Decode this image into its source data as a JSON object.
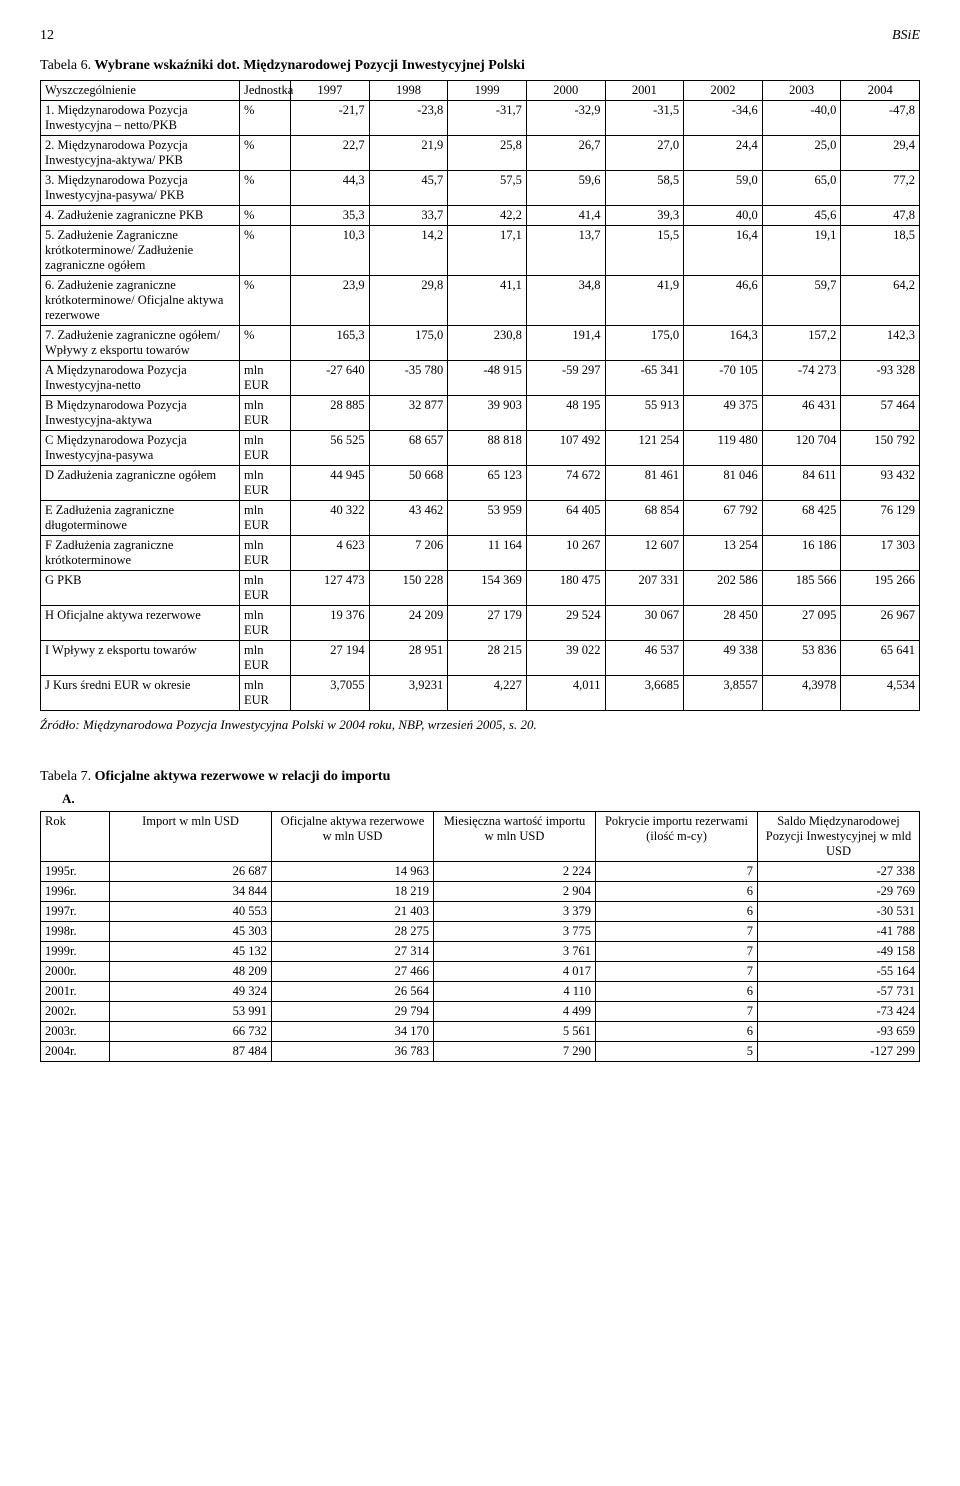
{
  "page": {
    "num": "12",
    "abbr": "BSiE"
  },
  "t6": {
    "caption_prefix": "Tabela 6.",
    "caption_bold": " Wybrane wskaźniki dot. Międzynarodowej Pozycji Inwestycyjnej Polski",
    "col_label": "Wyszczególnienie",
    "col_unit": "Jednostka",
    "years": [
      "1997",
      "1998",
      "1999",
      "2000",
      "2001",
      "2002",
      "2003",
      "2004"
    ],
    "rows": [
      {
        "label": "1. Międzynarodowa Pozycja Inwestycyjna – netto/PKB",
        "unit": "%",
        "v": [
          "-21,7",
          "-23,8",
          "-31,7",
          "-32,9",
          "-31,5",
          "-34,6",
          "-40,0",
          "-47,8"
        ]
      },
      {
        "label": "2. Międzynarodowa Pozycja Inwestycyjna-aktywa/ PKB",
        "unit": "%",
        "v": [
          "22,7",
          "21,9",
          "25,8",
          "26,7",
          "27,0",
          "24,4",
          "25,0",
          "29,4"
        ]
      },
      {
        "label": "3. Międzynarodowa Pozycja Inwestycyjna-pasywa/ PKB",
        "unit": "%",
        "v": [
          "44,3",
          "45,7",
          "57,5",
          "59,6",
          "58,5",
          "59,0",
          "65,0",
          "77,2"
        ]
      },
      {
        "label": "4. Zadłużenie zagraniczne PKB",
        "unit": "%",
        "v": [
          "35,3",
          "33,7",
          "42,2",
          "41,4",
          "39,3",
          "40,0",
          "45,6",
          "47,8"
        ]
      },
      {
        "label": "5. Zadłużenie Zagraniczne krótkoterminowe/ Zadłużenie zagraniczne ogółem",
        "unit": "%",
        "v": [
          "10,3",
          "14,2",
          "17,1",
          "13,7",
          "15,5",
          "16,4",
          "19,1",
          "18,5"
        ]
      },
      {
        "label": "6. Zadłużenie zagraniczne krótkoterminowe/ Oficjalne aktywa rezerwowe",
        "unit": "%",
        "v": [
          "23,9",
          "29,8",
          "41,1",
          "34,8",
          "41,9",
          "46,6",
          "59,7",
          "64,2"
        ]
      },
      {
        "label": "7. Zadłużenie zagraniczne ogółem/ Wpływy z eksportu towarów",
        "unit": "%",
        "v": [
          "165,3",
          "175,0",
          "230,8",
          "191,4",
          "175,0",
          "164,3",
          "157,2",
          "142,3"
        ]
      },
      {
        "label": "A Międzynarodowa Pozycja Inwestycyjna-netto",
        "unit": "mln EUR",
        "v": [
          "-27 640",
          "-35 780",
          "-48 915",
          "-59 297",
          "-65 341",
          "-70 105",
          "-74 273",
          "-93 328"
        ]
      },
      {
        "label": "B Międzynarodowa Pozycja Inwestycyjna-aktywa",
        "unit": "mln EUR",
        "v": [
          "28 885",
          "32 877",
          "39 903",
          "48 195",
          "55 913",
          "49 375",
          "46 431",
          "57 464"
        ]
      },
      {
        "label": "C Międzynarodowa Pozycja Inwestycyjna-pasywa",
        "unit": "mln EUR",
        "v": [
          "56 525",
          "68 657",
          "88 818",
          "107 492",
          "121 254",
          "119 480",
          "120 704",
          "150 792"
        ]
      },
      {
        "label": "D Zadłużenia zagraniczne ogółem",
        "unit": "mln EUR",
        "v": [
          "44 945",
          "50 668",
          "65 123",
          "74 672",
          "81 461",
          "81 046",
          "84 611",
          "93 432"
        ]
      },
      {
        "label": "E Zadłużenia zagraniczne długoterminowe",
        "unit": "mln EUR",
        "v": [
          "40 322",
          "43 462",
          "53 959",
          "64 405",
          "68 854",
          "67 792",
          "68 425",
          "76 129"
        ]
      },
      {
        "label": "F Zadłużenia zagraniczne krótkoterminowe",
        "unit": "mln EUR",
        "v": [
          "4 623",
          "7 206",
          "11 164",
          "10 267",
          "12 607",
          "13 254",
          "16 186",
          "17 303"
        ]
      },
      {
        "label": "G PKB",
        "unit": "mln EUR",
        "v": [
          "127 473",
          "150 228",
          "154 369",
          "180 475",
          "207 331",
          "202 586",
          "185 566",
          "195 266"
        ]
      },
      {
        "label": "H Oficjalne aktywa rezerwowe",
        "unit": "mln EUR",
        "v": [
          "19 376",
          "24 209",
          "27 179",
          "29 524",
          "30 067",
          "28 450",
          "27 095",
          "26 967"
        ]
      },
      {
        "label": "I Wpływy z eksportu towarów",
        "unit": "mln EUR",
        "v": [
          "27 194",
          "28 951",
          "28 215",
          "39 022",
          "46 537",
          "49 338",
          "53 836",
          "65 641"
        ]
      },
      {
        "label": "J Kurs średni EUR w okresie",
        "unit": "mln EUR",
        "v": [
          "3,7055",
          "3,9231",
          "4,227",
          "4,011",
          "3,6685",
          "3,8557",
          "4,3978",
          "4,534"
        ]
      }
    ],
    "source": "Źródło: Międzynarodowa Pozycja Inwestycyjna Polski w 2004 roku, NBP, wrzesień 2005, s. 20."
  },
  "t7": {
    "caption_prefix": "Tabela 7.",
    "caption_bold": " Oficjalne aktywa rezerwowe w relacji do importu",
    "sub": "A.",
    "headers": [
      "Rok",
      "Import w mln USD",
      "Oficjalne aktywa rezerwowe w mln USD",
      "Miesięczna wartość importu w mln USD",
      "Pokrycie importu rezerwami (ilość m-cy)",
      "Saldo Międzynarodowej Pozycji Inwestycyjnej w mld USD"
    ],
    "rows": [
      {
        "y": "1995r.",
        "v": [
          "26 687",
          "14 963",
          "2 224",
          "7",
          "-27 338"
        ]
      },
      {
        "y": "1996r.",
        "v": [
          "34 844",
          "18 219",
          "2 904",
          "6",
          "-29 769"
        ]
      },
      {
        "y": "1997r.",
        "v": [
          "40 553",
          "21 403",
          "3 379",
          "6",
          "-30 531"
        ]
      },
      {
        "y": "1998r.",
        "v": [
          "45 303",
          "28 275",
          "3 775",
          "7",
          "-41 788"
        ]
      },
      {
        "y": "1999r.",
        "v": [
          "45 132",
          "27 314",
          "3 761",
          "7",
          "-49 158"
        ]
      },
      {
        "y": "2000r.",
        "v": [
          "48 209",
          "27 466",
          "4 017",
          "7",
          "-55 164"
        ]
      },
      {
        "y": "2001r.",
        "v": [
          "49 324",
          "26 564",
          "4 110",
          "6",
          "-57 731"
        ]
      },
      {
        "y": "2002r.",
        "v": [
          "53 991",
          "29 794",
          "4 499",
          "7",
          "-73 424"
        ]
      },
      {
        "y": "2003r.",
        "v": [
          "66 732",
          "34 170",
          "5 561",
          "6",
          "-93 659"
        ]
      },
      {
        "y": "2004r.",
        "v": [
          "87 484",
          "36 783",
          "7 290",
          "5",
          "-127 299"
        ]
      }
    ]
  }
}
